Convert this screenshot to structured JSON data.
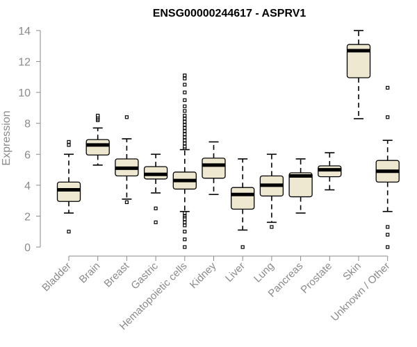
{
  "chart_data": {
    "type": "box",
    "title": "ENSG00000244617 - ASPRV1",
    "xlabel": "",
    "ylabel": "Expression",
    "ylim": [
      0,
      14
    ],
    "yticks": [
      0,
      2,
      4,
      6,
      8,
      10,
      12,
      14
    ],
    "grid": false,
    "legend": "none",
    "colors": {
      "box_fill": "#efe8d0",
      "stroke": "#000000",
      "axis": "#8a8a8a"
    },
    "categories": [
      "Bladder",
      "Brain",
      "Breast",
      "Gastric",
      "Hematopoietic cells",
      "Kidney",
      "Liver",
      "Lung",
      "Pancreas",
      "Prostate",
      "Skin",
      "Unknown / Other"
    ],
    "boxes": [
      {
        "category": "Bladder",
        "whisker_low": 2.2,
        "q1": 2.95,
        "median": 3.7,
        "q3": 4.2,
        "whisker_high": 6.0,
        "outliers": [
          6.6,
          6.8,
          1.0
        ]
      },
      {
        "category": "Brain",
        "whisker_low": 5.3,
        "q1": 5.95,
        "median": 6.6,
        "q3": 6.95,
        "whisker_high": 7.7,
        "outliers": [
          8.2,
          8.3,
          8.4,
          8.5
        ]
      },
      {
        "category": "Breast",
        "whisker_low": 3.1,
        "q1": 4.6,
        "median": 5.1,
        "q3": 5.7,
        "whisker_high": 7.0,
        "outliers": [
          8.4,
          2.9
        ]
      },
      {
        "category": "Gastric",
        "whisker_low": 3.5,
        "q1": 4.4,
        "median": 4.7,
        "q3": 5.2,
        "whisker_high": 6.0,
        "outliers": [
          2.5,
          1.6
        ]
      },
      {
        "category": "Hematopoietic cells",
        "whisker_low": 2.3,
        "q1": 3.75,
        "median": 4.3,
        "q3": 4.85,
        "whisker_high": 6.3,
        "outliers": [
          6.4,
          6.5,
          6.7,
          6.9,
          7.1,
          7.3,
          7.5,
          7.7,
          7.9,
          8.1,
          8.3,
          8.5,
          8.8,
          9.1,
          9.5,
          10.0,
          10.5,
          10.9,
          11.1,
          2.2,
          2.0,
          1.9,
          1.8,
          1.6,
          1.4,
          1.0,
          0.5,
          0.0
        ]
      },
      {
        "category": "Kidney",
        "whisker_low": 3.4,
        "q1": 4.45,
        "median": 5.3,
        "q3": 5.75,
        "whisker_high": 6.8,
        "outliers": []
      },
      {
        "category": "Liver",
        "whisker_low": 1.1,
        "q1": 2.45,
        "median": 3.4,
        "q3": 3.85,
        "whisker_high": 5.7,
        "outliers": [
          0.0
        ]
      },
      {
        "category": "Lung",
        "whisker_low": 1.6,
        "q1": 3.3,
        "median": 4.0,
        "q3": 4.6,
        "whisker_high": 6.0,
        "outliers": [
          1.3
        ]
      },
      {
        "category": "Pancreas",
        "whisker_low": 2.2,
        "q1": 3.25,
        "median": 4.6,
        "q3": 4.8,
        "whisker_high": 5.7,
        "outliers": []
      },
      {
        "category": "Prostate",
        "whisker_low": 3.7,
        "q1": 4.55,
        "median": 5.0,
        "q3": 5.25,
        "whisker_high": 6.1,
        "outliers": []
      },
      {
        "category": "Skin",
        "whisker_low": 8.3,
        "q1": 10.95,
        "median": 12.7,
        "q3": 13.1,
        "whisker_high": 14.0,
        "outliers": []
      },
      {
        "category": "Unknown / Other",
        "whisker_low": 2.3,
        "q1": 4.2,
        "median": 4.9,
        "q3": 5.6,
        "whisker_high": 6.9,
        "outliers": [
          10.3,
          8.4,
          1.3,
          0.8,
          0.0
        ]
      }
    ]
  }
}
